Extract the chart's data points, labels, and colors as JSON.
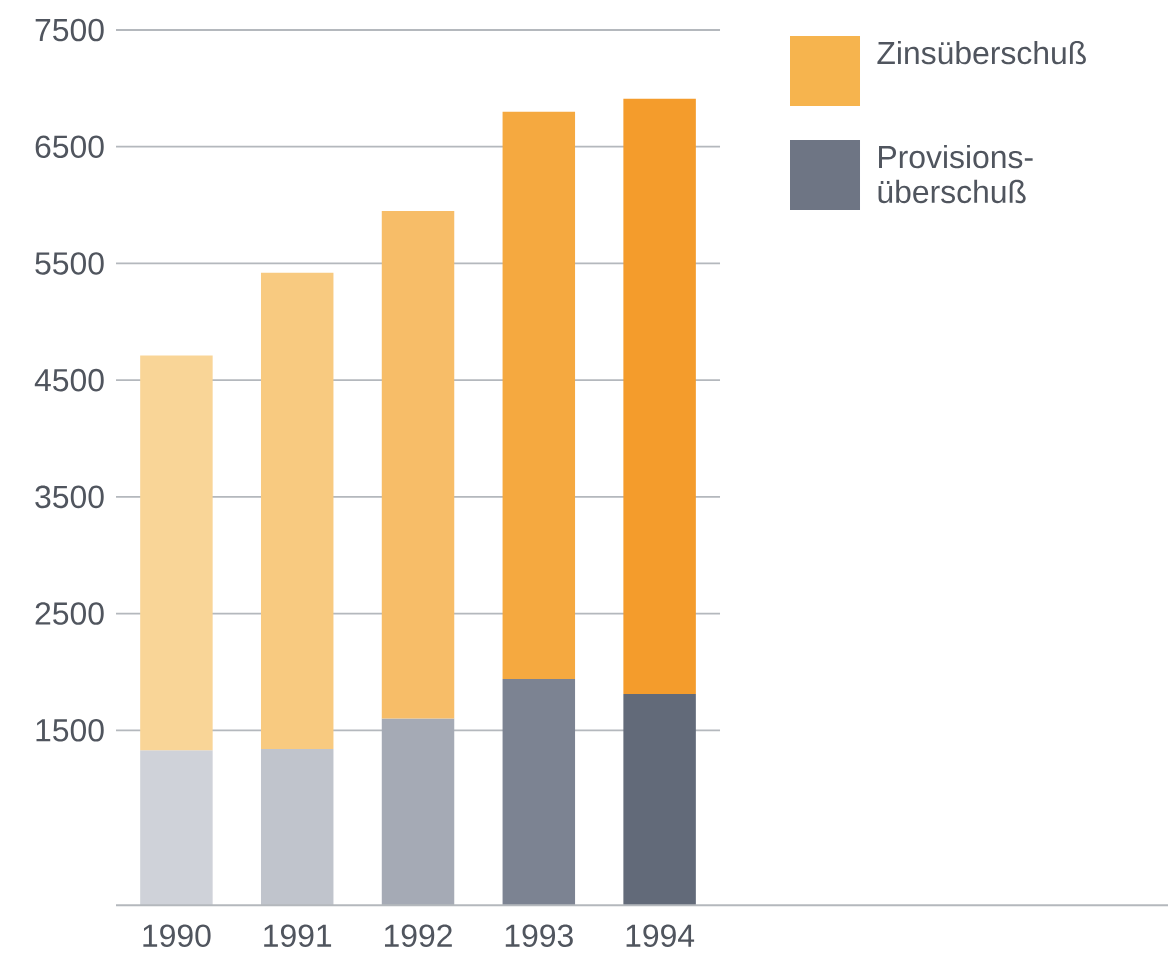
{
  "chart_data": {
    "type": "bar",
    "stacked": true,
    "categories": [
      "1990",
      "1991",
      "1992",
      "1993",
      "1994"
    ],
    "series": [
      {
        "name": "Provisions-überschuß",
        "color": "#6e7584",
        "colors": [
          "#cfd2d9",
          "#c0c4cc",
          "#a5aab5",
          "#7c8392",
          "#626a79"
        ],
        "values": [
          1330,
          1340,
          1600,
          1940,
          1810
        ]
      },
      {
        "name": "Zinsüberschuß",
        "color": "#f6b44e",
        "colors": [
          "#f9d597",
          "#f8ca80",
          "#f7bd68",
          "#f5a940",
          "#f49c2c"
        ],
        "values": [
          3380,
          4080,
          4350,
          4860,
          5100
        ]
      }
    ],
    "ylim": [
      0,
      7500
    ],
    "yticks": [
      1500,
      2500,
      3500,
      4500,
      5500,
      6500,
      7500
    ],
    "grid": "y",
    "legend": "top right"
  }
}
